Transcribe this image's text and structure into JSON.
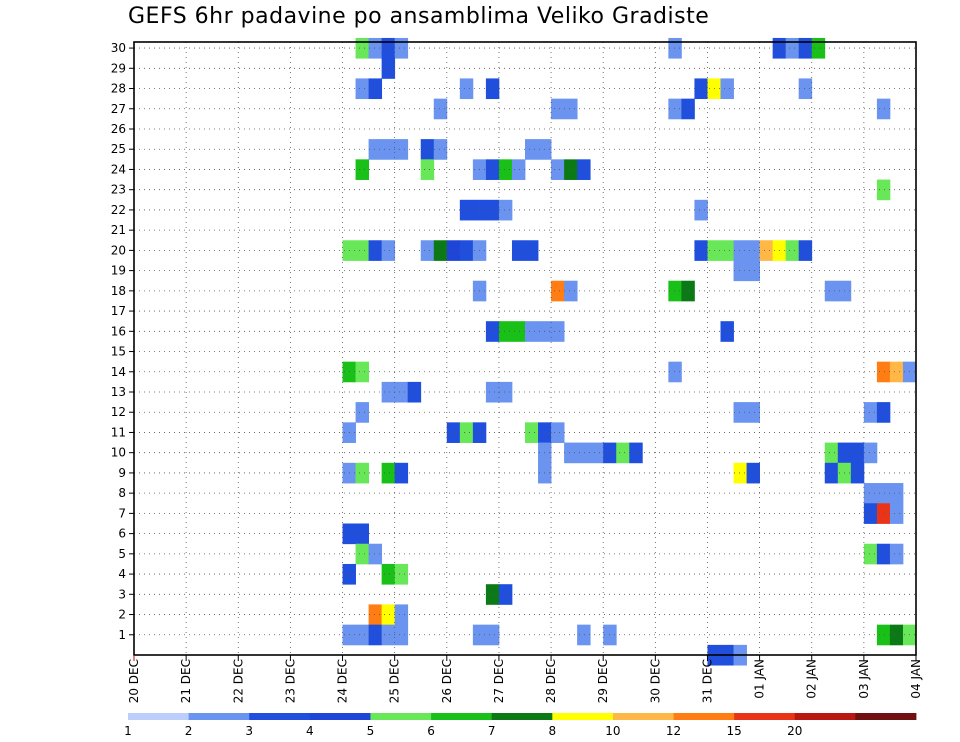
{
  "chart_data": {
    "type": "heatmap",
    "title": "GEFS 6hr padavine po ansamblima Veliko Gradiste",
    "xlabel": "",
    "ylabel": "",
    "x_ticks": [
      "20 DEC",
      "21 DEC",
      "22 DEC",
      "23 DEC",
      "24 DEC",
      "25 DEC",
      "26 DEC",
      "27 DEC",
      "28 DEC",
      "29 DEC",
      "30 DEC",
      "31 DEC",
      "01 JAN",
      "02 JAN",
      "03 JAN",
      "04 JAN"
    ],
    "y_ticks": [
      "1",
      "2",
      "3",
      "4",
      "5",
      "6",
      "7",
      "8",
      "9",
      "10",
      "11",
      "12",
      "13",
      "14",
      "15",
      "16",
      "17",
      "18",
      "19",
      "20",
      "21",
      "22",
      "23",
      "24",
      "25",
      "26",
      "27",
      "28",
      "29",
      "30"
    ],
    "xlim": [
      0,
      60
    ],
    "ylim": [
      0,
      30
    ],
    "grid": true,
    "colorbar": {
      "colors": [
        "#bccffa",
        "#6a94f0",
        "#1f4fdc",
        "#1f45d8",
        "#68e858",
        "#18c018",
        "#0b7a16",
        "#ffff00",
        "#ffb845",
        "#ff7d12",
        "#ea3418",
        "#b81712",
        "#701010"
      ],
      "labels": [
        "1",
        "2",
        "3",
        "4",
        "5",
        "6",
        "7",
        "8",
        "10",
        "12",
        "15",
        "20"
      ]
    },
    "cells": [
      [
        17,
        30,
        4
      ],
      [
        18,
        30,
        1
      ],
      [
        19,
        30,
        2
      ],
      [
        20,
        30,
        1
      ],
      [
        41,
        30,
        1
      ],
      [
        49,
        30,
        2
      ],
      [
        50,
        30,
        1
      ],
      [
        51,
        30,
        2
      ],
      [
        52,
        30,
        5
      ],
      [
        19,
        29,
        2
      ],
      [
        17,
        28,
        1
      ],
      [
        18,
        28,
        2
      ],
      [
        25,
        28,
        1
      ],
      [
        27,
        28,
        2
      ],
      [
        43,
        28,
        2
      ],
      [
        44,
        28,
        7
      ],
      [
        45,
        28,
        1
      ],
      [
        51,
        28,
        1
      ],
      [
        23,
        27,
        1
      ],
      [
        32,
        27,
        1
      ],
      [
        33,
        27,
        1
      ],
      [
        41,
        27,
        1
      ],
      [
        42,
        27,
        2
      ],
      [
        57,
        27,
        1
      ],
      [
        18,
        25,
        1
      ],
      [
        19,
        25,
        1
      ],
      [
        20,
        25,
        1
      ],
      [
        22,
        25,
        2
      ],
      [
        23,
        25,
        1
      ],
      [
        30,
        25,
        1
      ],
      [
        31,
        25,
        1
      ],
      [
        17,
        24,
        5
      ],
      [
        22,
        24,
        4
      ],
      [
        26,
        24,
        1
      ],
      [
        27,
        24,
        2
      ],
      [
        28,
        24,
        5
      ],
      [
        29,
        24,
        1
      ],
      [
        32,
        24,
        1
      ],
      [
        33,
        24,
        6
      ],
      [
        34,
        24,
        2
      ],
      [
        57,
        23,
        4
      ],
      [
        25,
        22,
        2
      ],
      [
        26,
        22,
        2
      ],
      [
        27,
        22,
        2
      ],
      [
        28,
        22,
        1
      ],
      [
        43,
        22,
        1
      ],
      [
        16,
        20,
        4
      ],
      [
        17,
        20,
        4
      ],
      [
        18,
        20,
        2
      ],
      [
        19,
        20,
        1
      ],
      [
        22,
        20,
        1
      ],
      [
        23,
        20,
        6
      ],
      [
        24,
        20,
        3
      ],
      [
        25,
        20,
        2
      ],
      [
        26,
        20,
        1
      ],
      [
        29,
        20,
        2
      ],
      [
        30,
        20,
        2
      ],
      [
        43,
        20,
        2
      ],
      [
        44,
        20,
        4
      ],
      [
        45,
        20,
        4
      ],
      [
        46,
        20,
        1
      ],
      [
        47,
        20,
        1
      ],
      [
        48,
        20,
        8
      ],
      [
        49,
        20,
        7
      ],
      [
        50,
        20,
        4
      ],
      [
        51,
        20,
        2
      ],
      [
        46,
        19,
        1
      ],
      [
        47,
        19,
        1
      ],
      [
        26,
        18,
        1
      ],
      [
        32,
        18,
        9
      ],
      [
        33,
        18,
        1
      ],
      [
        41,
        18,
        5
      ],
      [
        42,
        18,
        6
      ],
      [
        53,
        18,
        1
      ],
      [
        54,
        18,
        1
      ],
      [
        27,
        16,
        2
      ],
      [
        28,
        16,
        5
      ],
      [
        29,
        16,
        5
      ],
      [
        30,
        16,
        1
      ],
      [
        31,
        16,
        1
      ],
      [
        32,
        16,
        1
      ],
      [
        45,
        16,
        2
      ],
      [
        16,
        14,
        5
      ],
      [
        17,
        14,
        4
      ],
      [
        41,
        14,
        1
      ],
      [
        57,
        14,
        9
      ],
      [
        58,
        14,
        8
      ],
      [
        59,
        14,
        1
      ],
      [
        19,
        13,
        1
      ],
      [
        20,
        13,
        1
      ],
      [
        21,
        13,
        2
      ],
      [
        27,
        13,
        1
      ],
      [
        28,
        13,
        1
      ],
      [
        17,
        12,
        1
      ],
      [
        46,
        12,
        1
      ],
      [
        47,
        12,
        1
      ],
      [
        56,
        12,
        1
      ],
      [
        57,
        12,
        2
      ],
      [
        16,
        11,
        1
      ],
      [
        24,
        11,
        2
      ],
      [
        25,
        11,
        4
      ],
      [
        26,
        11,
        2
      ],
      [
        30,
        11,
        4
      ],
      [
        31,
        11,
        2
      ],
      [
        32,
        11,
        1
      ],
      [
        31,
        10,
        1
      ],
      [
        33,
        10,
        1
      ],
      [
        34,
        10,
        1
      ],
      [
        35,
        10,
        1
      ],
      [
        36,
        10,
        2
      ],
      [
        37,
        10,
        4
      ],
      [
        38,
        10,
        2
      ],
      [
        53,
        10,
        4
      ],
      [
        54,
        10,
        2
      ],
      [
        55,
        10,
        2
      ],
      [
        56,
        10,
        1
      ],
      [
        16,
        9,
        1
      ],
      [
        17,
        9,
        4
      ],
      [
        19,
        9,
        5
      ],
      [
        20,
        9,
        2
      ],
      [
        31,
        9,
        1
      ],
      [
        46,
        9,
        7
      ],
      [
        47,
        9,
        2
      ],
      [
        53,
        9,
        2
      ],
      [
        54,
        9,
        4
      ],
      [
        55,
        9,
        2
      ],
      [
        56,
        8,
        1
      ],
      [
        57,
        8,
        1
      ],
      [
        58,
        8,
        1
      ],
      [
        56,
        7,
        2
      ],
      [
        57,
        7,
        10
      ],
      [
        58,
        7,
        1
      ],
      [
        16,
        6,
        2
      ],
      [
        17,
        6,
        2
      ],
      [
        17,
        5,
        4
      ],
      [
        18,
        5,
        1
      ],
      [
        56,
        5,
        4
      ],
      [
        57,
        5,
        2
      ],
      [
        58,
        5,
        1
      ],
      [
        16,
        4,
        2
      ],
      [
        19,
        4,
        5
      ],
      [
        20,
        4,
        4
      ],
      [
        27,
        3,
        6
      ],
      [
        28,
        3,
        2
      ],
      [
        18,
        2,
        9
      ],
      [
        19,
        2,
        7
      ],
      [
        20,
        2,
        1
      ],
      [
        16,
        1,
        1
      ],
      [
        17,
        1,
        1
      ],
      [
        18,
        1,
        2
      ],
      [
        19,
        1,
        1
      ],
      [
        20,
        1,
        1
      ],
      [
        26,
        1,
        1
      ],
      [
        27,
        1,
        1
      ],
      [
        34,
        1,
        1
      ],
      [
        36,
        1,
        1
      ],
      [
        57,
        1,
        5
      ],
      [
        58,
        1,
        6
      ],
      [
        59,
        1,
        4
      ],
      [
        44,
        0,
        2
      ],
      [
        45,
        0,
        2
      ],
      [
        46,
        0,
        1
      ]
    ]
  }
}
